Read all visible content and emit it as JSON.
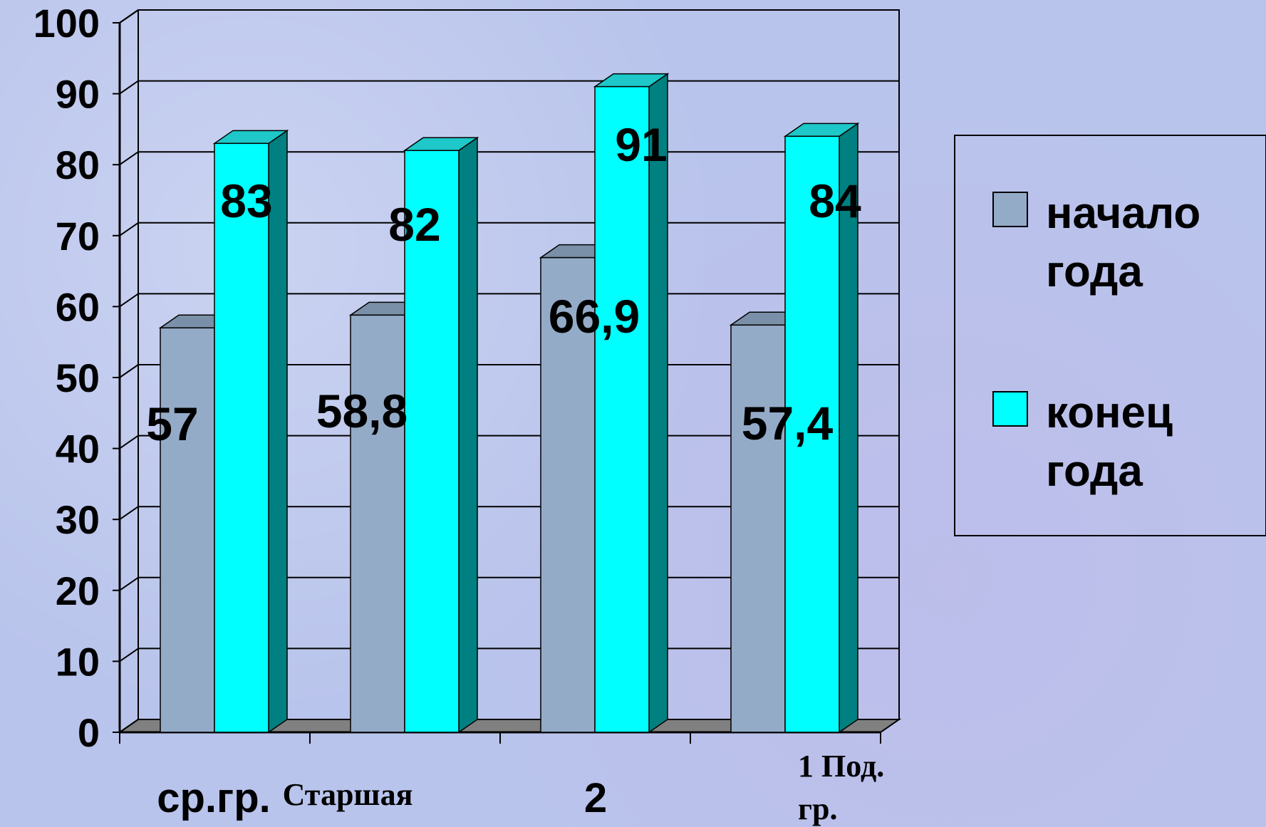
{
  "chart_data": {
    "type": "bar",
    "categories": [
      "ср.гр.",
      "Старшая",
      "2",
      "1 Под. гр."
    ],
    "series": [
      {
        "name": "начало года",
        "values": [
          57,
          58.8,
          66.9,
          57.4
        ],
        "labels": [
          "57",
          "58,8",
          "66,9",
          "57,4"
        ],
        "color": "#94abc8"
      },
      {
        "name": "конец года",
        "values": [
          83,
          82,
          91,
          84
        ],
        "labels": [
          "83",
          "82",
          "91",
          "84"
        ],
        "color": "#00ffff"
      }
    ],
    "ylim": [
      0,
      100
    ],
    "yticks": [
      "0",
      "10",
      "20",
      "30",
      "40",
      "50",
      "60",
      "70",
      "80",
      "90",
      "100"
    ],
    "legend": {
      "position": "right",
      "items": [
        [
          "начало",
          "года"
        ],
        [
          "конец",
          "года"
        ]
      ]
    },
    "grid": true,
    "colors": {
      "side_begin": "#6b7f98",
      "side_end": "#008080",
      "top_end": "#1ec8c8",
      "floor": "#808080"
    }
  }
}
